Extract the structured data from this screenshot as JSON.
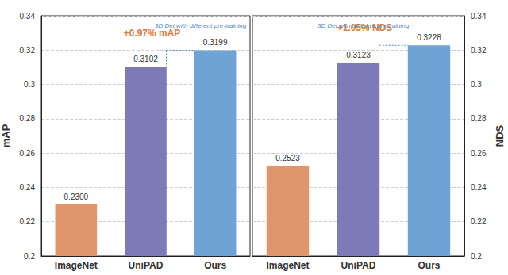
{
  "chart_data": [
    {
      "type": "bar",
      "title": "3D Det with different pre-training",
      "y_label": "mAP",
      "categories": [
        "ImageNet",
        "UniPAD",
        "Ours"
      ],
      "values": [
        0.23,
        0.3102,
        0.3199
      ],
      "value_labels": [
        "0.2300",
        "0.3102",
        "0.3199"
      ],
      "colors": [
        "#E0956B",
        "#7E7AB8",
        "#6FA3D6"
      ],
      "ylim": [
        0.2,
        0.34
      ],
      "yticks": [
        0.2,
        0.22,
        0.24,
        0.26,
        0.28,
        0.3,
        0.32,
        0.34
      ],
      "annotation": "+0.97% mAP",
      "grid": true,
      "data_labels": true
    },
    {
      "type": "bar",
      "title": "3D Det with different pre-training",
      "y_label": "NDS",
      "categories": [
        "ImageNet",
        "UniPAD",
        "Ours"
      ],
      "values": [
        0.2523,
        0.3123,
        0.3228
      ],
      "value_labels": [
        "0.2523",
        "0.3123",
        "0.3228"
      ],
      "colors": [
        "#E0956B",
        "#7E7AB8",
        "#6FA3D6"
      ],
      "ylim": [
        0.2,
        0.34
      ],
      "yticks": [
        0.2,
        0.22,
        0.24,
        0.26,
        0.28,
        0.3,
        0.32,
        0.34
      ],
      "annotation": "+1.05% NDS",
      "grid": true,
      "data_labels": true
    }
  ]
}
